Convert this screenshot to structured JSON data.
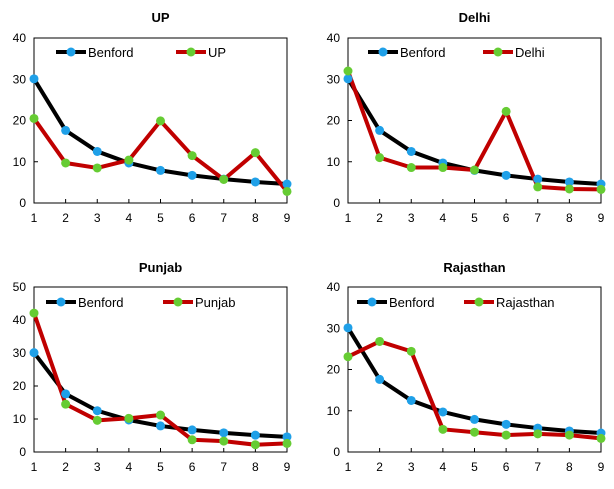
{
  "chart_data": [
    {
      "type": "line",
      "title": "UP",
      "x": [
        1,
        2,
        3,
        4,
        5,
        6,
        7,
        8,
        9
      ],
      "ylim": [
        0,
        40
      ],
      "yticks": [
        0,
        10,
        20,
        30,
        40
      ],
      "legend": "top",
      "grid": false,
      "series": [
        {
          "name": "Benford",
          "values": [
            30.1,
            17.6,
            12.5,
            9.7,
            7.9,
            6.7,
            5.8,
            5.1,
            4.6
          ],
          "line_color": "#000000",
          "marker_color": "#1FA0E8"
        },
        {
          "name": "UP",
          "values": [
            20.5,
            9.7,
            8.5,
            10.4,
            19.9,
            11.5,
            5.7,
            12.2,
            2.8
          ],
          "line_color": "#C00000",
          "marker_color": "#66CC33"
        }
      ]
    },
    {
      "type": "line",
      "title": "Delhi",
      "x": [
        1,
        2,
        3,
        4,
        5,
        6,
        7,
        8,
        9
      ],
      "ylim": [
        0,
        40
      ],
      "yticks": [
        0,
        10,
        20,
        30,
        40
      ],
      "legend": "top",
      "grid": false,
      "series": [
        {
          "name": "Benford",
          "values": [
            30.1,
            17.6,
            12.5,
            9.7,
            7.9,
            6.7,
            5.8,
            5.1,
            4.6
          ],
          "line_color": "#000000",
          "marker_color": "#1FA0E8"
        },
        {
          "name": "Delhi",
          "values": [
            32.0,
            11.0,
            8.6,
            8.6,
            8.0,
            22.2,
            3.9,
            3.4,
            3.3
          ],
          "line_color": "#C00000",
          "marker_color": "#66CC33"
        }
      ]
    },
    {
      "type": "line",
      "title": "Punjab",
      "x": [
        1,
        2,
        3,
        4,
        5,
        6,
        7,
        8,
        9
      ],
      "ylim": [
        0,
        50
      ],
      "yticks": [
        0,
        10,
        20,
        30,
        40,
        50
      ],
      "legend": "top",
      "grid": false,
      "series": [
        {
          "name": "Benford",
          "values": [
            30.1,
            17.6,
            12.5,
            9.7,
            7.9,
            6.7,
            5.8,
            5.1,
            4.6
          ],
          "line_color": "#000000",
          "marker_color": "#1FA0E8"
        },
        {
          "name": "Punjab",
          "values": [
            42.1,
            14.5,
            9.6,
            10.2,
            11.2,
            3.7,
            3.3,
            2.2,
            2.6
          ],
          "line_color": "#C00000",
          "marker_color": "#66CC33"
        }
      ]
    },
    {
      "type": "line",
      "title": "Rajasthan",
      "x": [
        1,
        2,
        3,
        4,
        5,
        6,
        7,
        8,
        9
      ],
      "ylim": [
        0,
        40
      ],
      "yticks": [
        0,
        10,
        20,
        30,
        40
      ],
      "legend": "top",
      "grid": false,
      "series": [
        {
          "name": "Benford",
          "values": [
            30.1,
            17.6,
            12.5,
            9.7,
            7.9,
            6.7,
            5.8,
            5.1,
            4.6
          ],
          "line_color": "#000000",
          "marker_color": "#1FA0E8"
        },
        {
          "name": "Rajasthan",
          "values": [
            23.1,
            26.8,
            24.4,
            5.5,
            4.8,
            4.1,
            4.4,
            4.1,
            3.3
          ],
          "line_color": "#C00000",
          "marker_color": "#66CC33"
        }
      ]
    }
  ]
}
